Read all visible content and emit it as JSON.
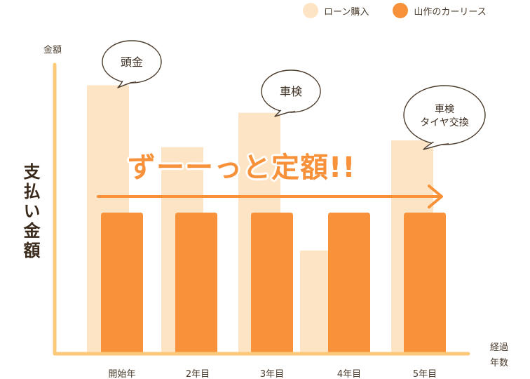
{
  "legend": {
    "loan_label": "ローン購入",
    "lease_label": "山作のカーリース"
  },
  "axis": {
    "y_small": "金額",
    "y_big": "支払い金額",
    "x_line1": "経過",
    "x_line2": "年数"
  },
  "banner": "ずーーっと定額!!",
  "bubbles": {
    "year0": "頭金",
    "year3": "車検",
    "year5_line1": "車検",
    "year5_line2": "タイヤ交換"
  },
  "colors": {
    "loan": "#fde4c5",
    "lease": "#f7913a",
    "axis": "#fbc978",
    "arrow": "#f7913a"
  },
  "chart_data": {
    "type": "bar",
    "categories": [
      "開始年",
      "2年目",
      "3年目",
      "4年目",
      "5年目"
    ],
    "series": [
      {
        "name": "ローン購入",
        "values": [
          390,
          300,
          350,
          150,
          310
        ]
      },
      {
        "name": "山作のカーリース",
        "values": [
          205,
          205,
          205,
          205,
          205
        ]
      }
    ],
    "ylim": [
      0,
      420
    ],
    "grid": false,
    "legend_position": "top-right"
  }
}
